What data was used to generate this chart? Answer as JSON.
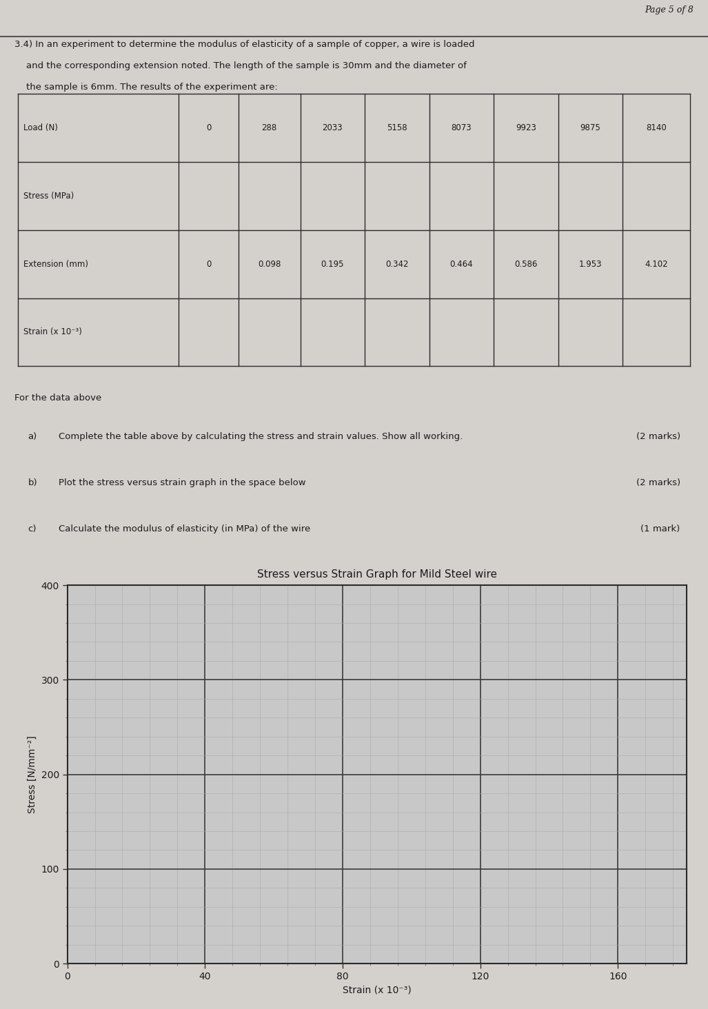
{
  "page_label": "Page 5 of 8",
  "problem_text_line1": "3.4) In an experiment to determine the modulus of elasticity of a sample of copper, a wire is loaded",
  "problem_text_line2": "    and the corresponding extension noted. The length of the sample is 30mm and the diameter of",
  "problem_text_line3": "    the sample is 6mm. The results of the experiment are:",
  "table": {
    "row_labels": [
      "Load (N)",
      "Stress (MPa)",
      "Extension (mm)",
      "Strain (x 10⁻³)"
    ],
    "load_values": [
      "0",
      "288",
      "2033",
      "5158",
      "8073",
      "9923",
      "9875",
      "8140"
    ],
    "extension_values": [
      "0",
      "0.098",
      "0.195",
      "0.342",
      "0.464",
      "0.586",
      "1.953",
      "4.102"
    ]
  },
  "instructions_header": "For the data above",
  "instructions": [
    [
      "a)",
      "Complete the table above by calculating the stress and strain values. Show all working.",
      "(2 marks)"
    ],
    [
      "b)",
      "Plot the stress versus strain graph in the space below",
      "(2 marks)"
    ],
    [
      "c)",
      "Calculate the modulus of elasticity (in MPa) of the wire",
      "(1 mark)"
    ]
  ],
  "graph_title": "Stress versus Strain Graph for Mild Steel wire",
  "ylabel": "Stress [N/mm⁻²]",
  "xlabel": "Strain (x 10⁻³)",
  "xmin": 0,
  "xmax": 180,
  "ymin": 0,
  "ymax": 400,
  "xticks": [
    0,
    40,
    80,
    120,
    160
  ],
  "yticks": [
    0,
    100,
    200,
    300,
    400
  ],
  "grid_major_color": "#3a3a3a",
  "grid_minor_color": "#aaaaaa",
  "grid_bg_color": "#c8c8c8",
  "page_bg_color": "#d4d0cc",
  "text_color": "#1a1a1a",
  "font_size_main": 9.5,
  "font_size_page": 9,
  "font_size_title": 11,
  "font_size_axis_label": 10
}
